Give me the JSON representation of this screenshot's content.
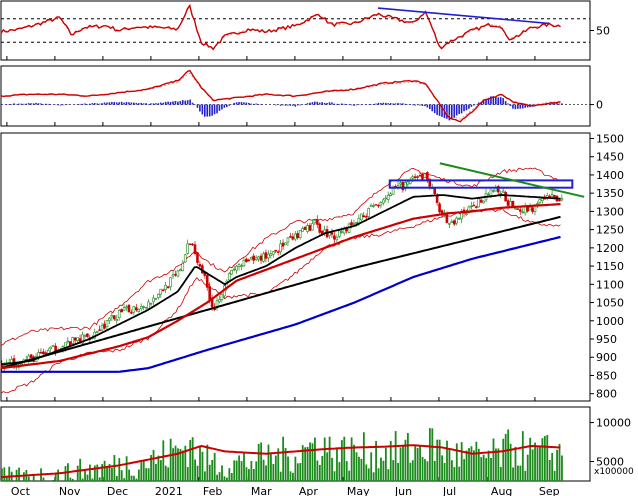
{
  "chart_data": {
    "type": "candlestick",
    "x_labels": [
      "Oct",
      "Nov",
      "Dec",
      "2021",
      "Feb",
      "Mar",
      "Apr",
      "May",
      "Jun",
      "Jul",
      "Aug",
      "Sep"
    ],
    "panels": [
      {
        "id": "rsi",
        "type": "line",
        "y_ticks": [
          "50"
        ],
        "ylim": [
          0,
          100
        ],
        "reference_line": 70,
        "trendline": [
          [
            0.64,
            88
          ],
          [
            0.93,
            62
          ]
        ],
        "anchors": [
          [
            0,
            48
          ],
          [
            0.03,
            52
          ],
          [
            0.06,
            60
          ],
          [
            0.1,
            72
          ],
          [
            0.12,
            42
          ],
          [
            0.14,
            55
          ],
          [
            0.18,
            58
          ],
          [
            0.2,
            50
          ],
          [
            0.23,
            56
          ],
          [
            0.27,
            55
          ],
          [
            0.3,
            52
          ],
          [
            0.32,
            92
          ],
          [
            0.34,
            30
          ],
          [
            0.36,
            20
          ],
          [
            0.38,
            40
          ],
          [
            0.42,
            52
          ],
          [
            0.45,
            48
          ],
          [
            0.5,
            58
          ],
          [
            0.54,
            78
          ],
          [
            0.56,
            60
          ],
          [
            0.6,
            62
          ],
          [
            0.64,
            78
          ],
          [
            0.66,
            72
          ],
          [
            0.7,
            62
          ],
          [
            0.72,
            82
          ],
          [
            0.73,
            60
          ],
          [
            0.745,
            20
          ],
          [
            0.76,
            30
          ],
          [
            0.8,
            50
          ],
          [
            0.83,
            60
          ],
          [
            0.85,
            58
          ],
          [
            0.86,
            35
          ],
          [
            0.88,
            42
          ],
          [
            0.9,
            55
          ],
          [
            0.93,
            60
          ],
          [
            0.95,
            58
          ]
        ]
      },
      {
        "id": "macd",
        "type": "line+histogram",
        "y_ticks": [
          "0"
        ],
        "ylim": [
          -25,
          45
        ],
        "macd_anchors": [
          [
            0,
            10
          ],
          [
            0.05,
            12
          ],
          [
            0.1,
            12
          ],
          [
            0.15,
            10
          ],
          [
            0.2,
            14
          ],
          [
            0.25,
            18
          ],
          [
            0.3,
            28
          ],
          [
            0.32,
            40
          ],
          [
            0.34,
            20
          ],
          [
            0.36,
            5
          ],
          [
            0.4,
            8
          ],
          [
            0.45,
            12
          ],
          [
            0.5,
            10
          ],
          [
            0.55,
            15
          ],
          [
            0.6,
            18
          ],
          [
            0.65,
            25
          ],
          [
            0.7,
            28
          ],
          [
            0.72,
            25
          ],
          [
            0.74,
            5
          ],
          [
            0.76,
            -15
          ],
          [
            0.78,
            -20
          ],
          [
            0.8,
            -8
          ],
          [
            0.82,
            5
          ],
          [
            0.85,
            12
          ],
          [
            0.87,
            3
          ],
          [
            0.9,
            -2
          ],
          [
            0.93,
            2
          ],
          [
            0.95,
            3
          ]
        ],
        "histogram_anchors": [
          [
            0,
            0
          ],
          [
            0.05,
            2
          ],
          [
            0.1,
            -1
          ],
          [
            0.15,
            1
          ],
          [
            0.2,
            3
          ],
          [
            0.25,
            1
          ],
          [
            0.3,
            4
          ],
          [
            0.32,
            6
          ],
          [
            0.345,
            -15
          ],
          [
            0.36,
            -12
          ],
          [
            0.38,
            -3
          ],
          [
            0.4,
            3
          ],
          [
            0.45,
            0
          ],
          [
            0.5,
            -2
          ],
          [
            0.53,
            3
          ],
          [
            0.56,
            2
          ],
          [
            0.6,
            -1
          ],
          [
            0.64,
            2
          ],
          [
            0.68,
            1
          ],
          [
            0.72,
            -2
          ],
          [
            0.74,
            -12
          ],
          [
            0.76,
            -18
          ],
          [
            0.78,
            -10
          ],
          [
            0.8,
            -2
          ],
          [
            0.83,
            10
          ],
          [
            0.85,
            8
          ],
          [
            0.87,
            -6
          ],
          [
            0.9,
            -3
          ],
          [
            0.93,
            2
          ],
          [
            0.95,
            1
          ]
        ]
      },
      {
        "id": "price",
        "type": "candlestick",
        "y_ticks": [
          "1500",
          "1450",
          "1400",
          "1350",
          "1300",
          "1250",
          "1200",
          "1150",
          "1100",
          "1050",
          "1000",
          "950",
          "900",
          "850",
          "800"
        ],
        "ylim": [
          780,
          1515
        ],
        "close_anchors": [
          [
            0,
            880
          ],
          [
            0.05,
            895
          ],
          [
            0.1,
            930
          ],
          [
            0.15,
            960
          ],
          [
            0.2,
            1020
          ],
          [
            0.25,
            1050
          ],
          [
            0.3,
            1130
          ],
          [
            0.32,
            1220
          ],
          [
            0.34,
            1140
          ],
          [
            0.36,
            1030
          ],
          [
            0.38,
            1110
          ],
          [
            0.4,
            1150
          ],
          [
            0.45,
            1180
          ],
          [
            0.5,
            1230
          ],
          [
            0.53,
            1265
          ],
          [
            0.56,
            1230
          ],
          [
            0.6,
            1270
          ],
          [
            0.65,
            1340
          ],
          [
            0.68,
            1370
          ],
          [
            0.72,
            1400
          ],
          [
            0.74,
            1320
          ],
          [
            0.76,
            1260
          ],
          [
            0.78,
            1290
          ],
          [
            0.8,
            1310
          ],
          [
            0.83,
            1360
          ],
          [
            0.85,
            1350
          ],
          [
            0.87,
            1300
          ],
          [
            0.9,
            1310
          ],
          [
            0.93,
            1340
          ],
          [
            0.95,
            1335
          ]
        ],
        "ma50_anchors": [
          [
            0,
            870
          ],
          [
            0.1,
            890
          ],
          [
            0.2,
            930
          ],
          [
            0.25,
            955
          ],
          [
            0.3,
            1000
          ],
          [
            0.35,
            1050
          ],
          [
            0.4,
            1110
          ],
          [
            0.5,
            1170
          ],
          [
            0.6,
            1230
          ],
          [
            0.7,
            1280
          ],
          [
            0.76,
            1295
          ],
          [
            0.8,
            1300
          ],
          [
            0.85,
            1310
          ],
          [
            0.9,
            1315
          ],
          [
            0.95,
            1320
          ]
        ],
        "ma20_anchors": [
          [
            0,
            880
          ],
          [
            0.05,
            890
          ],
          [
            0.1,
            920
          ],
          [
            0.15,
            950
          ],
          [
            0.2,
            990
          ],
          [
            0.25,
            1030
          ],
          [
            0.3,
            1080
          ],
          [
            0.33,
            1150
          ],
          [
            0.35,
            1130
          ],
          [
            0.38,
            1100
          ],
          [
            0.4,
            1120
          ],
          [
            0.45,
            1150
          ],
          [
            0.5,
            1200
          ],
          [
            0.55,
            1240
          ],
          [
            0.6,
            1260
          ],
          [
            0.65,
            1300
          ],
          [
            0.7,
            1340
          ],
          [
            0.75,
            1345
          ],
          [
            0.8,
            1335
          ],
          [
            0.85,
            1345
          ],
          [
            0.9,
            1340
          ],
          [
            0.95,
            1335
          ]
        ],
        "ma100_anchors": [
          [
            0,
            870
          ],
          [
            0.35,
            1030
          ],
          [
            0.6,
            1145
          ],
          [
            0.8,
            1225
          ],
          [
            0.95,
            1285
          ]
        ],
        "ma200_anchors": [
          [
            0,
            860
          ],
          [
            0.2,
            860
          ],
          [
            0.25,
            870
          ],
          [
            0.35,
            920
          ],
          [
            0.5,
            990
          ],
          [
            0.6,
            1050
          ],
          [
            0.7,
            1120
          ],
          [
            0.8,
            1170
          ],
          [
            0.9,
            1210
          ],
          [
            0.95,
            1230
          ]
        ],
        "resistance_box": [
          [
            0.66,
            1385
          ],
          [
            0.97,
            1365
          ]
        ],
        "downtrend_line": [
          [
            0.745,
            1432
          ],
          [
            0.99,
            1340
          ]
        ]
      },
      {
        "id": "volume",
        "type": "bar+line",
        "y_ticks": [
          "10000",
          "5000"
        ],
        "unit_label": "x100000",
        "ylim": [
          2500,
          12000
        ],
        "volume_anchors": [
          [
            0,
            3200
          ],
          [
            0.05,
            3300
          ],
          [
            0.1,
            3600
          ],
          [
            0.15,
            4200
          ],
          [
            0.2,
            4800
          ],
          [
            0.25,
            5300
          ],
          [
            0.3,
            6800
          ],
          [
            0.32,
            7800
          ],
          [
            0.34,
            5500
          ],
          [
            0.38,
            5000
          ],
          [
            0.42,
            5200
          ],
          [
            0.45,
            5800
          ],
          [
            0.5,
            6300
          ],
          [
            0.54,
            7800
          ],
          [
            0.56,
            6500
          ],
          [
            0.6,
            6500
          ],
          [
            0.65,
            6500
          ],
          [
            0.7,
            6800
          ],
          [
            0.73,
            7500
          ],
          [
            0.76,
            6300
          ],
          [
            0.8,
            5800
          ],
          [
            0.84,
            6000
          ],
          [
            0.87,
            7200
          ],
          [
            0.9,
            6200
          ],
          [
            0.93,
            6500
          ],
          [
            0.95,
            6300
          ]
        ],
        "avg_anchors": [
          [
            0,
            3000
          ],
          [
            0.1,
            3500
          ],
          [
            0.2,
            4500
          ],
          [
            0.3,
            6000
          ],
          [
            0.34,
            7000
          ],
          [
            0.38,
            6300
          ],
          [
            0.45,
            6000
          ],
          [
            0.5,
            6300
          ],
          [
            0.55,
            6600
          ],
          [
            0.6,
            6800
          ],
          [
            0.65,
            6900
          ],
          [
            0.7,
            7100
          ],
          [
            0.75,
            6800
          ],
          [
            0.8,
            6000
          ],
          [
            0.85,
            6300
          ],
          [
            0.9,
            7000
          ],
          [
            0.95,
            6800
          ]
        ]
      }
    ],
    "series_colors": {
      "candle_up": "#1a8a1a",
      "candle_down": "#cc0000",
      "rsi": "#cc0000",
      "macd": "#cc0000",
      "macd_hist": "#2020d0",
      "ma_red": "#cc0000",
      "ma_black": "#000000",
      "ma_blue": "#0000cc",
      "bollinger": "#cc0000",
      "trend_green": "#1a8a1a",
      "trend_blue": "#2020d0",
      "volume": "#1a8a1a"
    }
  }
}
